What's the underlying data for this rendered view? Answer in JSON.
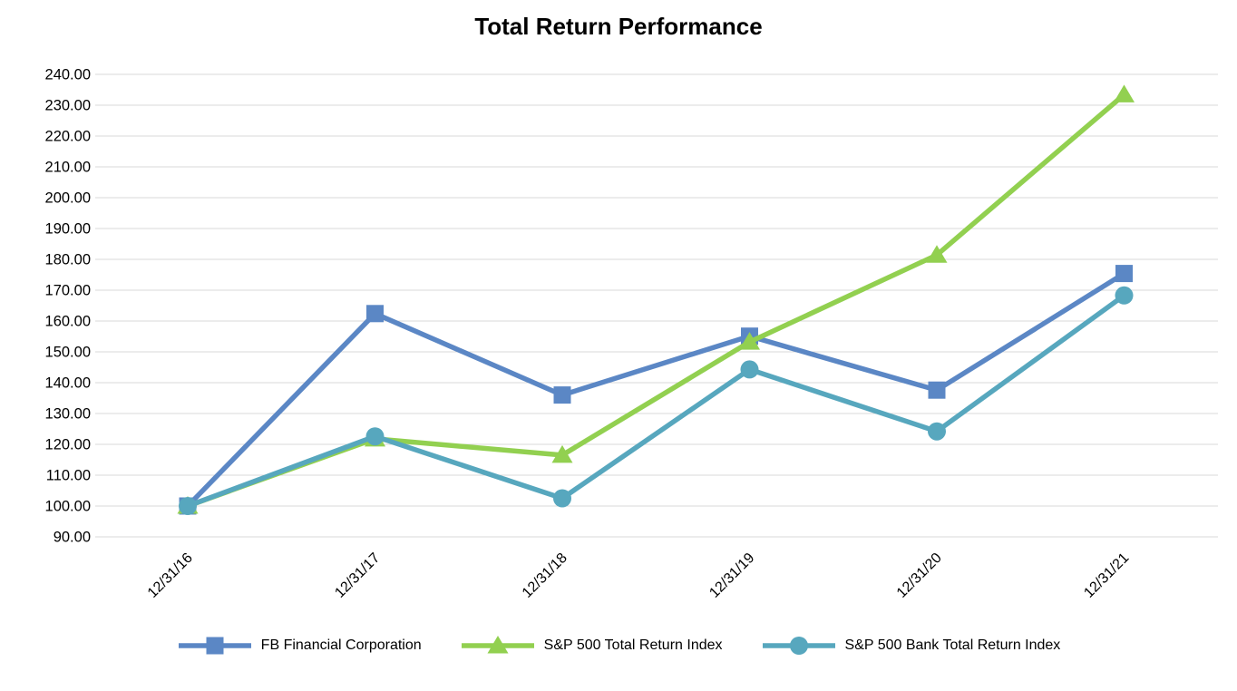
{
  "chart_data": {
    "type": "line",
    "title": "Total Return Performance",
    "categories": [
      "12/31/16",
      "12/31/17",
      "12/31/18",
      "12/31/19",
      "12/31/20",
      "12/31/21"
    ],
    "series": [
      {
        "name": "FB Financial Corporation",
        "color": "#5B87C5",
        "marker": "square",
        "values": [
          100.0,
          162.4,
          136.0,
          155.1,
          137.6,
          175.4
        ]
      },
      {
        "name": "S&P 500 Total Return Index",
        "color": "#92D050",
        "marker": "triangle",
        "values": [
          100.0,
          121.8,
          116.5,
          153.2,
          181.4,
          233.4
        ]
      },
      {
        "name": "S&P 500 Bank Total Return Index",
        "color": "#57A7BE",
        "marker": "circle",
        "values": [
          100.0,
          122.6,
          102.5,
          144.3,
          124.2,
          168.3
        ]
      }
    ],
    "xlabel": "",
    "ylabel": "",
    "ylim": [
      90,
      240
    ],
    "ytick_step": 10,
    "ytick_decimals": 2,
    "grid": "horizontal",
    "gridline_color": "#D9D9D9",
    "axis_text_color": "#000000",
    "legend_position": "bottom"
  }
}
